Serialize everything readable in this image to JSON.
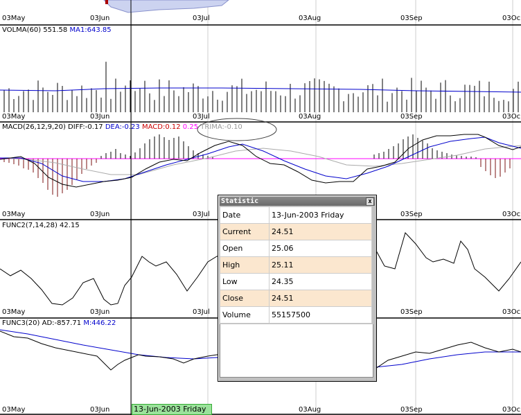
{
  "date_axis": [
    "03May",
    "03Jun",
    "03Jul",
    "03Aug",
    "03Sep",
    "03Oc"
  ],
  "panels": {
    "volma": {
      "label": "VOLMA(60) 551.58",
      "ma1": "MA1:643.85"
    },
    "macd": {
      "label": "MACD(26,12,9,20)",
      "diff": "DIFF:-0.17",
      "dea": "DEA:-0.23",
      "macd_value": "MACD:0.12",
      "extra": "0.25",
      "trima": "TRIMA:-0.10"
    },
    "func2": {
      "label": "FUNC2(7,14,28) 42.15"
    },
    "func3": {
      "label": "FUNC3(20) AD:-857.71",
      "ma": "M:446.22"
    }
  },
  "cursor_date": "13-Jun-2003 Friday",
  "statistic": {
    "title": "Statistic",
    "close_glyph": "x",
    "rows": [
      {
        "key": "Date",
        "value": "13-Jun-2003 Friday"
      },
      {
        "key": "Current",
        "value": "24.51"
      },
      {
        "key": "Open",
        "value": "25.06"
      },
      {
        "key": "High",
        "value": "25.11"
      },
      {
        "key": "Low",
        "value": "24.35"
      },
      {
        "key": "Close",
        "value": "24.51"
      },
      {
        "key": "Volume",
        "value": "55157500"
      }
    ]
  },
  "colors": {
    "blue": "#0000cc",
    "red": "#cc0000",
    "magenta": "#ff00ff",
    "gray": "#999999",
    "bar_dark_red": "#7a1010",
    "highlight": "#fbe7cf",
    "date_tag": "#9be29b"
  }
}
